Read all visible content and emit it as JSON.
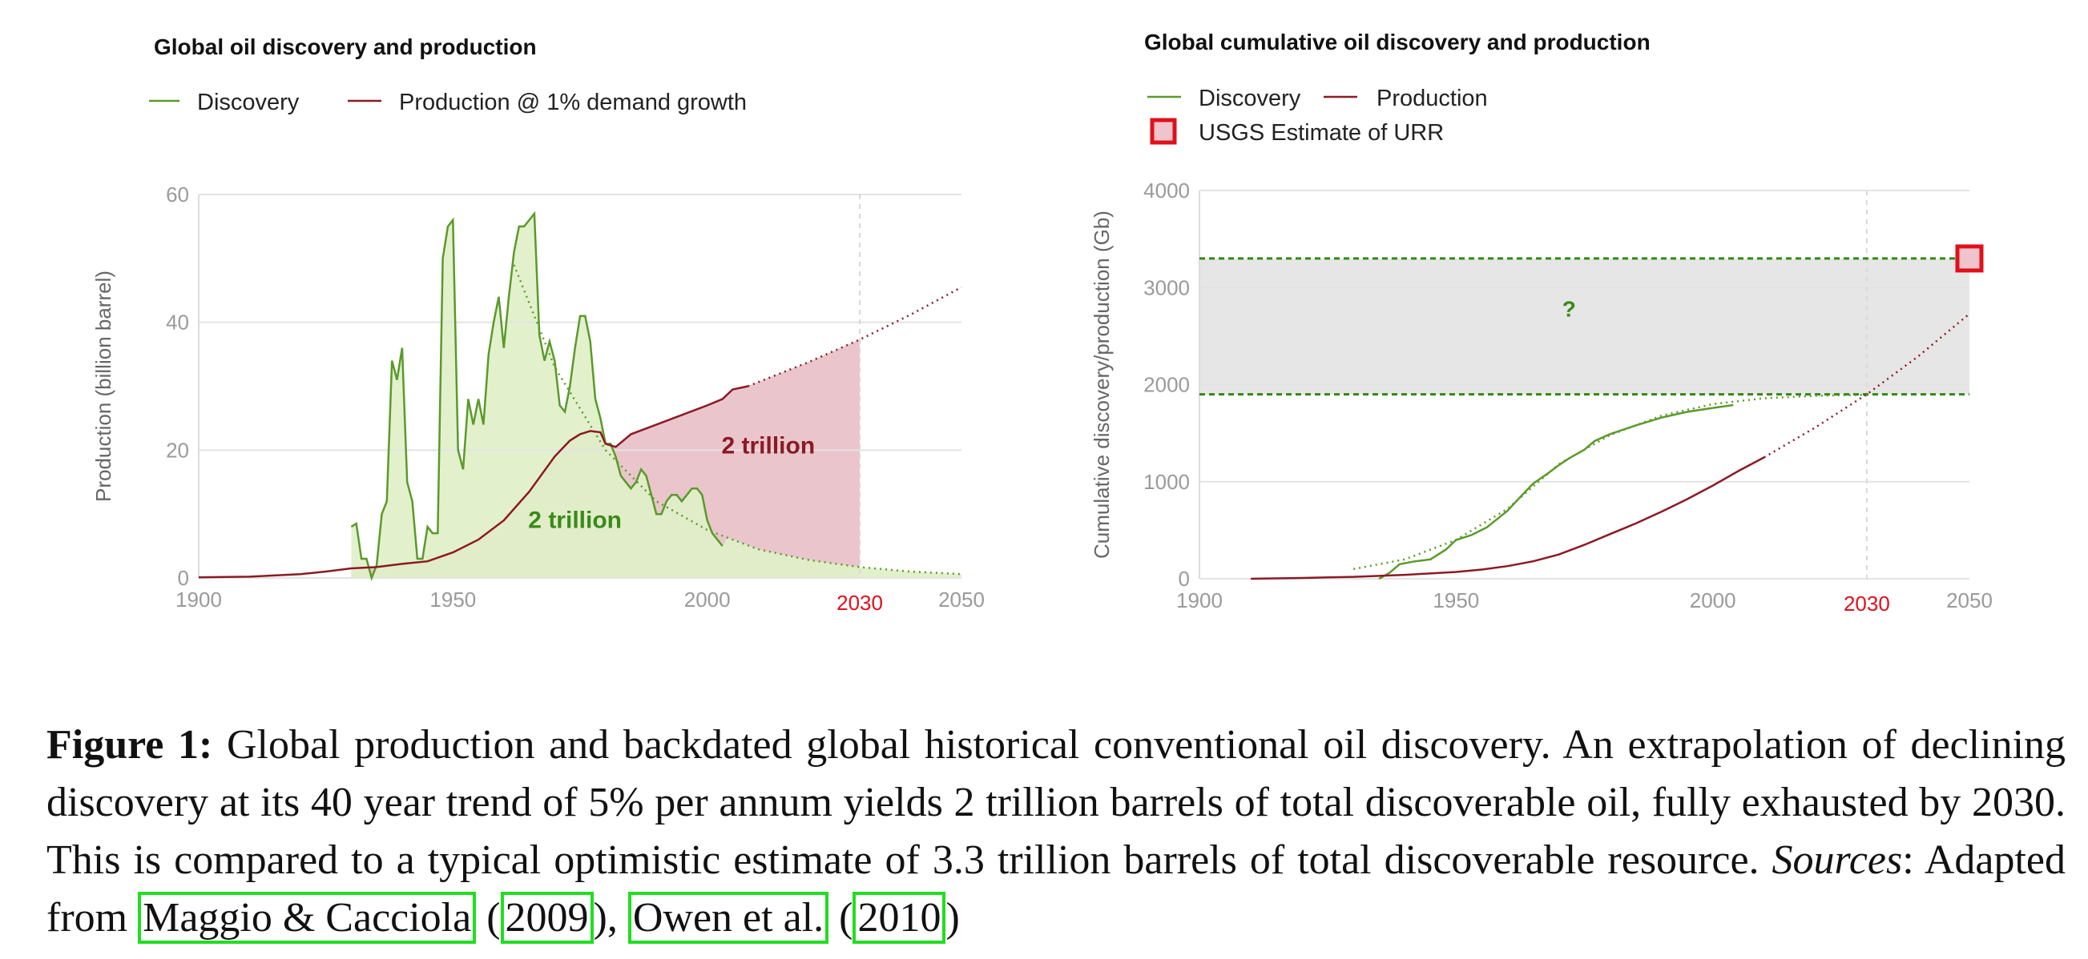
{
  "chart_data": [
    {
      "type": "area",
      "title": "Global oil discovery and production",
      "ylabel": "Production (billion barrel)",
      "xlabel": "",
      "xlim": [
        1900,
        2050
      ],
      "ylim": [
        0,
        60
      ],
      "x_ticks": [
        "1900",
        "1950",
        "2000",
        "2050"
      ],
      "y_ticks": [
        "0",
        "20",
        "40",
        "60"
      ],
      "highlight_tick": "2030",
      "highlight_year": 2030,
      "grid": true,
      "legend_position": "top-left",
      "series": [
        {
          "name": "Discovery",
          "color": "#5a9a2a",
          "x": [
            1930,
            1931,
            1932,
            1933,
            1934,
            1935,
            1936,
            1937,
            1938,
            1939,
            1940,
            1941,
            1942,
            1943,
            1944,
            1945,
            1946,
            1947,
            1948,
            1949,
            1950,
            1951,
            1952,
            1953,
            1954,
            1955,
            1956,
            1957,
            1958,
            1959,
            1960,
            1961,
            1962,
            1963,
            1964,
            1965,
            1966,
            1967,
            1968,
            1969,
            1970,
            1971,
            1972,
            1973,
            1974,
            1975,
            1976,
            1977,
            1978,
            1979,
            1980,
            1981,
            1982,
            1983,
            1984,
            1985,
            1986,
            1987,
            1988,
            1989,
            1990,
            1991,
            1992,
            1993,
            1994,
            1995,
            1996,
            1997,
            1998,
            1999,
            2000,
            2001,
            2002,
            2003
          ],
          "values": [
            8,
            8.5,
            3,
            3,
            0,
            2,
            10,
            12,
            34,
            31,
            36,
            15,
            12,
            3,
            3,
            8,
            7,
            7,
            50,
            55,
            56,
            20,
            17,
            28,
            24,
            28,
            24,
            35,
            40,
            44,
            36,
            44,
            51,
            55,
            55,
            56,
            57,
            38,
            34,
            37,
            34,
            27,
            26,
            30,
            36,
            41,
            41,
            37,
            28,
            25,
            21,
            21,
            19,
            16,
            15,
            14,
            15,
            17,
            16,
            13,
            10,
            10,
            12,
            13,
            13,
            12,
            13,
            14,
            14,
            13,
            9,
            7,
            6,
            5
          ]
        },
        {
          "name": "Production @ 1% demand growth",
          "color": "#8b1a24",
          "x": [
            1900,
            1910,
            1920,
            1925,
            1930,
            1935,
            1940,
            1945,
            1950,
            1955,
            1960,
            1965,
            1970,
            1973,
            1975,
            1977,
            1979,
            1980,
            1982,
            1985,
            1990,
            1995,
            2000,
            2003,
            2005,
            2008
          ],
          "values": [
            0.1,
            0.2,
            0.6,
            1.0,
            1.5,
            1.7,
            2.2,
            2.6,
            4.0,
            6.0,
            9.0,
            13.5,
            19.0,
            21.5,
            22.5,
            23.0,
            22.8,
            21.0,
            20.5,
            22.5,
            24.0,
            25.5,
            27.0,
            28.0,
            29.5,
            30.0
          ]
        },
        {
          "name": "",
          "style": "dotted",
          "color": "#8b1a24",
          "x": [
            2008,
            2020,
            2030,
            2040,
            2050
          ],
          "values": [
            30.0,
            33.8,
            37.3,
            41.2,
            45.5
          ]
        },
        {
          "name": "",
          "style": "dotted",
          "color": "#5a9a2a",
          "x": [
            1962,
            1970,
            1980,
            1990,
            2000,
            2010,
            2020,
            2030,
            2040,
            2050
          ],
          "values": [
            49,
            33,
            20,
            12,
            7.5,
            4.5,
            2.8,
            1.7,
            1.0,
            0.6
          ]
        }
      ],
      "annotations": [
        {
          "text": "2 trillion",
          "x": 2012,
          "y": 19.5,
          "color": "#8b1a24"
        },
        {
          "text": "2 trillion",
          "x": 1974,
          "y": 7.8,
          "color": "#3a8a1a"
        }
      ]
    },
    {
      "type": "line",
      "title": "Global cumulative oil discovery and production",
      "ylabel": "Cumulative discovery/production (Gb)",
      "xlabel": "",
      "xlim": [
        1900,
        2050
      ],
      "ylim": [
        0,
        4000
      ],
      "x_ticks": [
        "1900",
        "1950",
        "2000",
        "2050"
      ],
      "y_ticks": [
        "0",
        "1000",
        "2000",
        "3000",
        "4000"
      ],
      "highlight_tick": "2030",
      "highlight_year": 2030,
      "grid": true,
      "legend_position": "top-left",
      "series": [
        {
          "name": "Discovery",
          "color": "#5a9a2a",
          "x": [
            1935,
            1937,
            1939,
            1942,
            1945,
            1948,
            1950,
            1953,
            1956,
            1960,
            1963,
            1965,
            1968,
            1970,
            1972,
            1975,
            1977,
            1980,
            1985,
            1990,
            1995,
            2000,
            2004
          ],
          "values": [
            0,
            60,
            150,
            180,
            200,
            300,
            400,
            450,
            530,
            700,
            870,
            980,
            1090,
            1170,
            1240,
            1330,
            1420,
            1490,
            1580,
            1660,
            1720,
            1760,
            1790
          ]
        },
        {
          "name": "Production",
          "color": "#8b1a24",
          "x": [
            1910,
            1920,
            1930,
            1940,
            1950,
            1955,
            1960,
            1965,
            1970,
            1975,
            1980,
            1985,
            1990,
            1995,
            2000,
            2005,
            2010
          ],
          "values": [
            0,
            8,
            20,
            40,
            70,
            95,
            130,
            180,
            250,
            350,
            460,
            570,
            690,
            820,
            960,
            1110,
            1250
          ]
        },
        {
          "name": "",
          "style": "dotted",
          "color": "#8b1a24",
          "x": [
            2010,
            2020,
            2030,
            2040,
            2050
          ],
          "values": [
            1250,
            1560,
            1900,
            2290,
            2730
          ]
        },
        {
          "name": "",
          "style": "dotted",
          "color": "#5a9a2a",
          "x": [
            1930,
            1940,
            1950,
            1960,
            1970,
            1980,
            1990,
            2000,
            2010,
            2020,
            2030
          ],
          "values": [
            100,
            200,
            400,
            720,
            1180,
            1480,
            1680,
            1800,
            1860,
            1885,
            1895
          ]
        }
      ],
      "reference_lines": [
        {
          "y": 3300,
          "color": "#2e8a10",
          "style": "dashed"
        },
        {
          "y": 1900,
          "color": "#2e8a10",
          "style": "dashed"
        }
      ],
      "band": {
        "y0": 1900,
        "y1": 3300,
        "color": "#e6e6e6"
      },
      "marker": {
        "name": "USGS Estimate of URR",
        "x": 2050,
        "y": 3300,
        "fill": "#f0c4cc",
        "stroke": "#e0101a"
      },
      "annotations": [
        {
          "text": "?",
          "x": 1972,
          "y": 2700,
          "color": "#3a8a1a"
        }
      ]
    }
  ],
  "caption": {
    "label": "Figure 1:",
    "body": "Global production and backdated global historical conventional oil discovery. An extrapolation of declining discovery at its 40 year trend of 5% per annum yields 2 trillion barrels of total discoverable oil, fully exhausted by 2030. This is compared to a typical optimistic estimate of 3.3 trillion barrels of total discoverable resource.",
    "sources_label": "Sources",
    "adapted": ": Adapted from",
    "cite1_author": "Maggio & Cacciola",
    "cite1_year": "2009",
    "cite2_author": "Owen et al.",
    "cite2_year": "2010"
  }
}
